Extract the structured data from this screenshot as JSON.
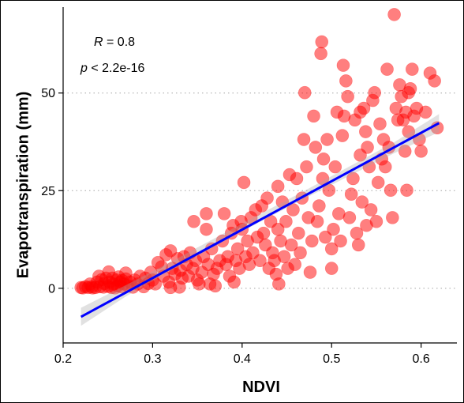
{
  "chart_data": {
    "type": "scatter",
    "xlabel": "NDVI",
    "ylabel": "Evapotranspiration (mm)",
    "xlim": [
      0.2,
      0.64
    ],
    "ylim": [
      -14,
      72
    ],
    "xticks": [
      "0.2",
      "0.3",
      "0.4",
      "0.5",
      "0.6"
    ],
    "yticks": [
      "0",
      "25",
      "50"
    ],
    "grid": "horizontal dotted at y ticks",
    "annotation": {
      "r_label": "R",
      "r_value": " = 0.8",
      "p_label": "p",
      "p_value": " < 2.2e-16"
    },
    "point_color": "#ff0000",
    "fit_color": "#0000ff",
    "fit_line": {
      "x": [
        0.22,
        0.62
      ],
      "y": [
        -7.3,
        42.3
      ]
    },
    "confidence_band": {
      "x": [
        0.22,
        0.27,
        0.32,
        0.37,
        0.42,
        0.47,
        0.52,
        0.57,
        0.62
      ],
      "lower": [
        -9.6,
        -2.1,
        4.5,
        10.8,
        17.0,
        23.0,
        28.8,
        34.6,
        40.0
      ],
      "upper": [
        -5.0,
        0.8,
        6.7,
        12.9,
        19.0,
        25.0,
        31.2,
        37.4,
        44.6
      ]
    },
    "points": [
      [
        0.22,
        0.2
      ],
      [
        0.222,
        0.1
      ],
      [
        0.225,
        0.4
      ],
      [
        0.228,
        0.2
      ],
      [
        0.23,
        1.1
      ],
      [
        0.232,
        0.4
      ],
      [
        0.233,
        0.1
      ],
      [
        0.236,
        0.2
      ],
      [
        0.238,
        1.6
      ],
      [
        0.24,
        3.1
      ],
      [
        0.241,
        0.4
      ],
      [
        0.243,
        2.2
      ],
      [
        0.245,
        0.3
      ],
      [
        0.246,
        1.2
      ],
      [
        0.248,
        2.6
      ],
      [
        0.25,
        0.5
      ],
      [
        0.251,
        4.2
      ],
      [
        0.252,
        1.6
      ],
      [
        0.254,
        0.2
      ],
      [
        0.255,
        2.6
      ],
      [
        0.256,
        1.1
      ],
      [
        0.258,
        0.1
      ],
      [
        0.26,
        2.1
      ],
      [
        0.261,
        0.6
      ],
      [
        0.262,
        2.9
      ],
      [
        0.264,
        1.6
      ],
      [
        0.265,
        0.4
      ],
      [
        0.266,
        2.0
      ],
      [
        0.268,
        1.1
      ],
      [
        0.27,
        2.4
      ],
      [
        0.27,
        3.9
      ],
      [
        0.272,
        0.7
      ],
      [
        0.275,
        1.6
      ],
      [
        0.278,
        0.3
      ],
      [
        0.28,
        2.1
      ],
      [
        0.283,
        1.1
      ],
      [
        0.286,
        3.1
      ],
      [
        0.29,
        0.4
      ],
      [
        0.292,
        2.6
      ],
      [
        0.295,
        1.2
      ],
      [
        0.298,
        4.1
      ],
      [
        0.3,
        2.1
      ],
      [
        0.303,
        1.1
      ],
      [
        0.306,
        6.6
      ],
      [
        0.31,
        5.5
      ],
      [
        0.312,
        3.1
      ],
      [
        0.315,
        8.6
      ],
      [
        0.318,
        1.6
      ],
      [
        0.32,
        0.2
      ],
      [
        0.32,
        9.6
      ],
      [
        0.322,
        5.1
      ],
      [
        0.325,
        3.6
      ],
      [
        0.328,
        7.6
      ],
      [
        0.33,
        0.3
      ],
      [
        0.331,
        4.6
      ],
      [
        0.333,
        2.6
      ],
      [
        0.335,
        8.1
      ],
      [
        0.338,
        6.1
      ],
      [
        0.34,
        3.1
      ],
      [
        0.342,
        9.1
      ],
      [
        0.345,
        5.1
      ],
      [
        0.346,
        17.1
      ],
      [
        0.348,
        7.1
      ],
      [
        0.35,
        2.1
      ],
      [
        0.352,
        1.1
      ],
      [
        0.355,
        4.1
      ],
      [
        0.357,
        8.1
      ],
      [
        0.36,
        15.1
      ],
      [
        0.36,
        19.1
      ],
      [
        0.362,
        6.1
      ],
      [
        0.364,
        1.1
      ],
      [
        0.366,
        10.1
      ],
      [
        0.368,
        3.6
      ],
      [
        0.37,
        0.6
      ],
      [
        0.372,
        5.1
      ],
      [
        0.375,
        7.1
      ],
      [
        0.378,
        12.1
      ],
      [
        0.38,
        19.1
      ],
      [
        0.382,
        6.1
      ],
      [
        0.384,
        8.1
      ],
      [
        0.386,
        3.1
      ],
      [
        0.388,
        14.1
      ],
      [
        0.39,
        16.1
      ],
      [
        0.391,
        1.6
      ],
      [
        0.393,
        7.1
      ],
      [
        0.395,
        10.1
      ],
      [
        0.397,
        5.1
      ],
      [
        0.399,
        17.1
      ],
      [
        0.4,
        15.1
      ],
      [
        0.402,
        27.1
      ],
      [
        0.404,
        8.1
      ],
      [
        0.406,
        12.1
      ],
      [
        0.408,
        6.1
      ],
      [
        0.41,
        18.1
      ],
      [
        0.412,
        9.1
      ],
      [
        0.415,
        20.1
      ],
      [
        0.417,
        13.1
      ],
      [
        0.42,
        7.1
      ],
      [
        0.422,
        21.1
      ],
      [
        0.424,
        14.1
      ],
      [
        0.426,
        11.1
      ],
      [
        0.428,
        23.1
      ],
      [
        0.43,
        5.1
      ],
      [
        0.432,
        17.1
      ],
      [
        0.434,
        9.1
      ],
      [
        0.436,
        7.1
      ],
      [
        0.438,
        3.6
      ],
      [
        0.44,
        26.1
      ],
      [
        0.44,
        15.1
      ],
      [
        0.441,
        1.1
      ],
      [
        0.443,
        12.1
      ],
      [
        0.445,
        22.1
      ],
      [
        0.447,
        8.1
      ],
      [
        0.449,
        17.1
      ],
      [
        0.451,
        5.1
      ],
      [
        0.453,
        29.1
      ],
      [
        0.455,
        11.1
      ],
      [
        0.457,
        20.1
      ],
      [
        0.459,
        6.1
      ],
      [
        0.461,
        28.1
      ],
      [
        0.463,
        14.1
      ],
      [
        0.465,
        9.1
      ],
      [
        0.467,
        23.1
      ],
      [
        0.469,
        38.1
      ],
      [
        0.47,
        50.1
      ],
      [
        0.472,
        31.1
      ],
      [
        0.474,
        18.1
      ],
      [
        0.476,
        4.1
      ],
      [
        0.478,
        12.1
      ],
      [
        0.48,
        44.1
      ],
      [
        0.482,
        36.1
      ],
      [
        0.484,
        17.1
      ],
      [
        0.486,
        21.1
      ],
      [
        0.488,
        60.1
      ],
      [
        0.489,
        63.1
      ],
      [
        0.49,
        28.1
      ],
      [
        0.491,
        33.1
      ],
      [
        0.493,
        13.1
      ],
      [
        0.495,
        38.1
      ],
      [
        0.497,
        25.1
      ],
      [
        0.5,
        5.1
      ],
      [
        0.5,
        10.1
      ],
      [
        0.502,
        15.1
      ],
      [
        0.504,
        31.1
      ],
      [
        0.506,
        45.1
      ],
      [
        0.508,
        19.1
      ],
      [
        0.51,
        12.1
      ],
      [
        0.512,
        39.1
      ],
      [
        0.513,
        57.1
      ],
      [
        0.514,
        44.1
      ],
      [
        0.516,
        53.1
      ],
      [
        0.518,
        49.1
      ],
      [
        0.52,
        18.1
      ],
      [
        0.522,
        24.1
      ],
      [
        0.524,
        28.1
      ],
      [
        0.526,
        43.1
      ],
      [
        0.528,
        14.1
      ],
      [
        0.53,
        11.1
      ],
      [
        0.532,
        34.1
      ],
      [
        0.534,
        22.1
      ],
      [
        0.536,
        46.1
      ],
      [
        0.538,
        40.1
      ],
      [
        0.539,
        16.1
      ],
      [
        0.54,
        36.1
      ],
      [
        0.542,
        31.1
      ],
      [
        0.544,
        20.1
      ],
      [
        0.546,
        48.1
      ],
      [
        0.548,
        50.1
      ],
      [
        0.55,
        17.1
      ],
      [
        0.552,
        27.1
      ],
      [
        0.554,
        42.1
      ],
      [
        0.556,
        33.1
      ],
      [
        0.558,
        38.1
      ],
      [
        0.56,
        31.1
      ],
      [
        0.562,
        56.1
      ],
      [
        0.564,
        36.1
      ],
      [
        0.566,
        25.1
      ],
      [
        0.568,
        18.1
      ],
      [
        0.57,
        70.1
      ],
      [
        0.572,
        46.1
      ],
      [
        0.574,
        43.1
      ],
      [
        0.576,
        52.1
      ],
      [
        0.578,
        49.1
      ],
      [
        0.58,
        43.1
      ],
      [
        0.582,
        35.1
      ],
      [
        0.584,
        25.1
      ],
      [
        0.586,
        40.1
      ],
      [
        0.588,
        51.1
      ],
      [
        0.59,
        56.1
      ],
      [
        0.592,
        44.1
      ],
      [
        0.595,
        46.1
      ],
      [
        0.598,
        38.1
      ],
      [
        0.6,
        35.1
      ],
      [
        0.605,
        45.1
      ],
      [
        0.61,
        55.1
      ],
      [
        0.615,
        53.1
      ],
      [
        0.618,
        41.1
      ],
      [
        0.586,
        50.1
      ],
      [
        0.583,
        45.1
      ],
      [
        0.532,
        45.1
      ]
    ]
  }
}
